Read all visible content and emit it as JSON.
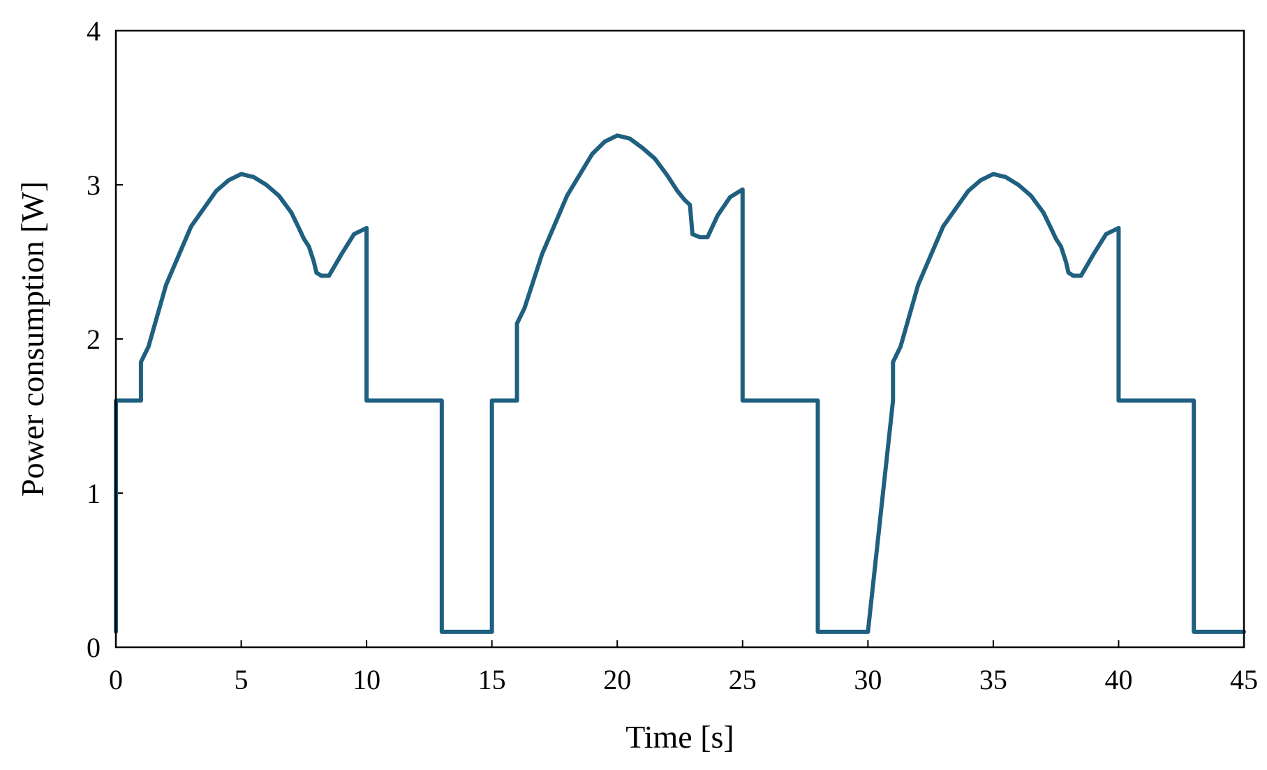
{
  "chart_data": {
    "type": "line",
    "title": "",
    "xlabel": "Time [s]",
    "ylabel": "Power consumption [W]",
    "xlim": [
      0,
      45
    ],
    "ylim": [
      0,
      4
    ],
    "x_ticks": [
      "0",
      "5",
      "10",
      "15",
      "20",
      "25",
      "30",
      "35",
      "40",
      "45"
    ],
    "y_ticks": [
      "0",
      "1",
      "2",
      "3",
      "4"
    ],
    "grid": false,
    "legend": "none",
    "colors": {
      "series": "#1f5f80",
      "axis": "#000000"
    },
    "series": [
      {
        "x": [
          0,
          0,
          1,
          1,
          1.3,
          2,
          3,
          4,
          4.5,
          5,
          5.5,
          6,
          6.5,
          7,
          7.3,
          7.5,
          7.7,
          7.9,
          8.0,
          8.2,
          8.5,
          9,
          9.5,
          10,
          10,
          13,
          13,
          15,
          15,
          16,
          16,
          16.3,
          17,
          18,
          19,
          19.5,
          20,
          20.5,
          21,
          21.5,
          22,
          22.4,
          22.7,
          22.9,
          23.0,
          23.3,
          23.6,
          24,
          24.5,
          25,
          25,
          28,
          28,
          30,
          31,
          31,
          31.3,
          32,
          33,
          34,
          34.5,
          35,
          35.5,
          36,
          36.5,
          37,
          37.3,
          37.5,
          37.7,
          37.9,
          38.0,
          38.2,
          38.5,
          39,
          39.5,
          40,
          40,
          43,
          43,
          45
        ],
        "y": [
          0.1,
          1.6,
          1.6,
          1.85,
          1.95,
          2.35,
          2.73,
          2.96,
          3.03,
          3.07,
          3.05,
          3.0,
          2.93,
          2.82,
          2.72,
          2.65,
          2.6,
          2.5,
          2.43,
          2.41,
          2.41,
          2.55,
          2.68,
          2.72,
          1.6,
          1.6,
          0.1,
          0.1,
          1.6,
          1.6,
          2.1,
          2.2,
          2.55,
          2.93,
          3.2,
          3.28,
          3.32,
          3.3,
          3.24,
          3.17,
          3.06,
          2.96,
          2.9,
          2.87,
          2.68,
          2.66,
          2.66,
          2.8,
          2.92,
          2.97,
          1.6,
          1.6,
          0.1,
          0.1,
          1.6,
          1.85,
          1.95,
          2.35,
          2.73,
          2.96,
          3.03,
          3.07,
          3.05,
          3.0,
          2.93,
          2.82,
          2.72,
          2.65,
          2.6,
          2.5,
          2.43,
          2.41,
          2.41,
          2.55,
          2.68,
          2.72,
          1.6,
          1.6,
          0.1,
          0.1
        ]
      }
    ]
  }
}
